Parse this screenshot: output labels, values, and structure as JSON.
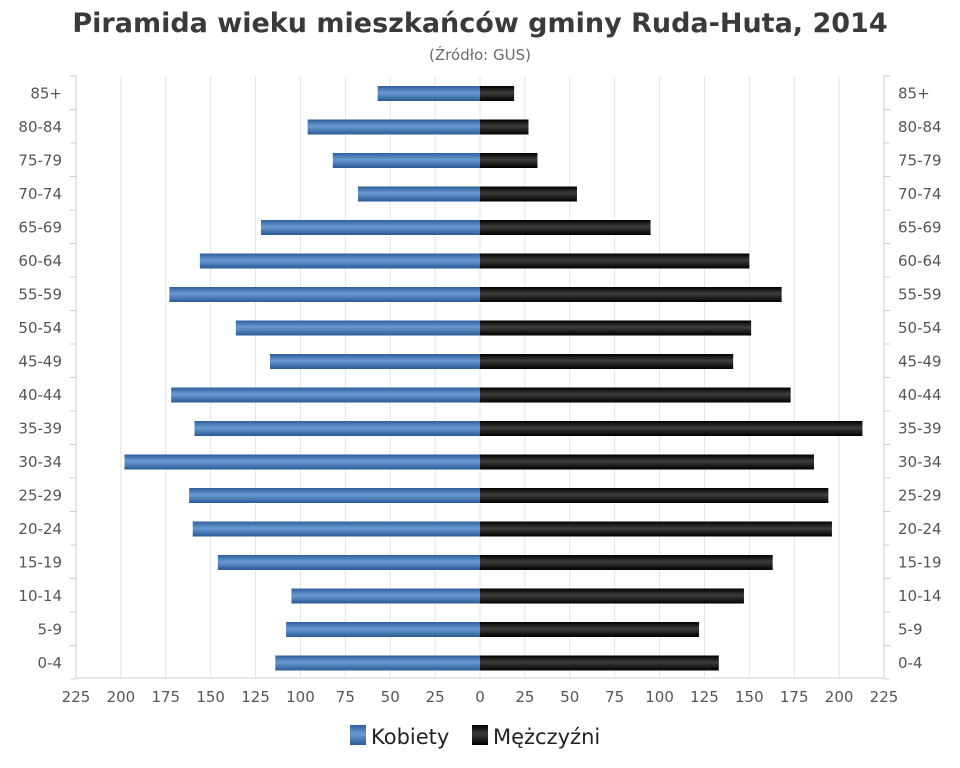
{
  "chart_data": {
    "type": "bar",
    "orientation": "horizontal-population-pyramid",
    "title": "Piramida wieku mieszkańców gminy Ruda-Huta, 2014",
    "subtitle": "(Źródło: GUS)",
    "categories": [
      "0-4",
      "5-9",
      "10-14",
      "15-19",
      "20-24",
      "25-29",
      "30-34",
      "35-39",
      "40-44",
      "45-49",
      "50-54",
      "55-59",
      "60-64",
      "65-69",
      "70-74",
      "75-79",
      "80-84",
      "85+"
    ],
    "series": [
      {
        "name": "Kobiety",
        "color": "#4a7fbf",
        "values": [
          114,
          108,
          105,
          146,
          160,
          162,
          198,
          159,
          172,
          117,
          136,
          173,
          156,
          122,
          68,
          82,
          96,
          57
        ]
      },
      {
        "name": "Mężczyźni",
        "color": "#1c1c1c",
        "values": [
          133,
          122,
          147,
          163,
          196,
          194,
          186,
          213,
          173,
          141,
          151,
          168,
          150,
          95,
          54,
          32,
          27,
          19
        ]
      }
    ],
    "x_ticks": [
      "225",
      "200",
      "175",
      "150",
      "125",
      "100",
      "75",
      "50",
      "25",
      "0",
      "25",
      "50",
      "75",
      "100",
      "125",
      "150",
      "175",
      "200",
      "225"
    ],
    "xlim": [
      -225,
      225
    ],
    "grid": true,
    "legend": "bottom-center"
  }
}
